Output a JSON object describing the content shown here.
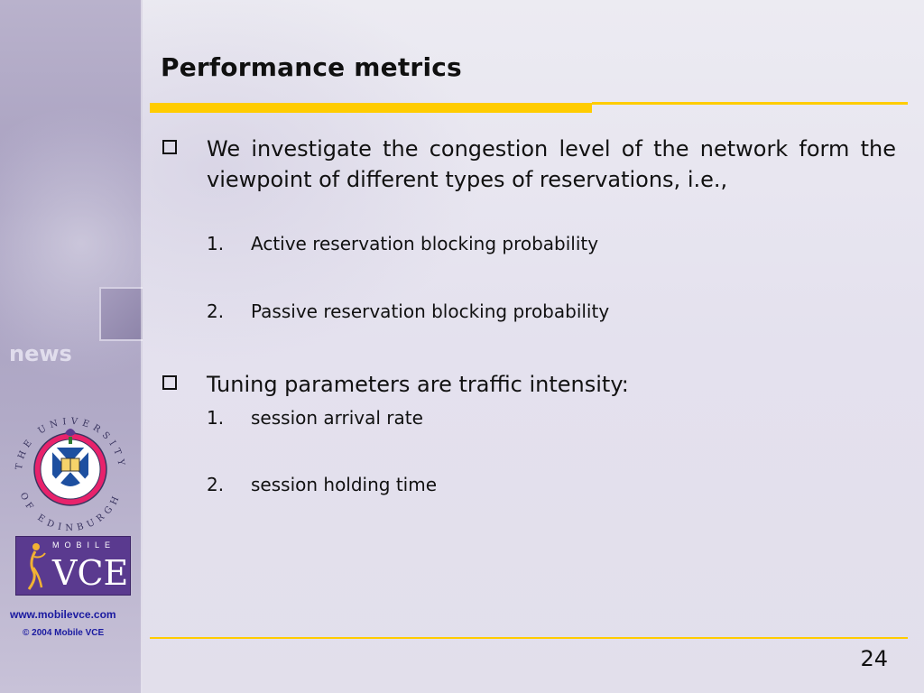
{
  "slide": {
    "title": "Performance metrics",
    "page_number": "24",
    "colors": {
      "accent_rule": "#ffcc00",
      "sidebar": "#a79fbf",
      "background": "#e6e3ee",
      "link_text": "#1a1aa0",
      "vce_logo": "#5a3a8f",
      "seal_ring": "#e8226b"
    }
  },
  "bullets": [
    {
      "marker_icon": "hollow-square-icon",
      "text": "We investigate the congestion level of the network form the viewpoint of different types of reservations, i.e.,",
      "items": [
        {
          "num": "1.",
          "text": "Active reservation blocking probability"
        },
        {
          "num": "2.",
          "text": "Passive reservation blocking probability"
        }
      ]
    },
    {
      "marker_icon": "hollow-square-icon",
      "text": "Tuning parameters are traffic intensity:",
      "items": [
        {
          "num": "1.",
          "text": "session arrival rate"
        },
        {
          "num": "2.",
          "text": "session holding time"
        }
      ]
    }
  ],
  "sidebar": {
    "decor_text": "news",
    "university_seal": {
      "top_text": "THE UNIVERSITY",
      "bottom_text": "OF EDINBURGH"
    },
    "vce_logo": {
      "small": "MOBILE",
      "large": "VCE"
    },
    "website": "www.mobilevce.com",
    "copyright": "© 2004 Mobile VCE"
  }
}
